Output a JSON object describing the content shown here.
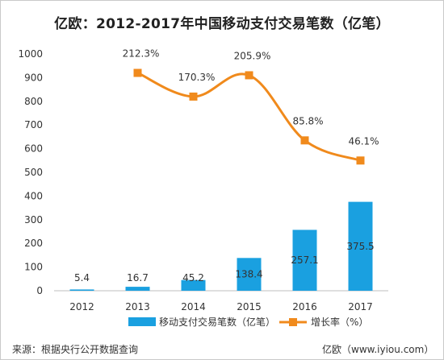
{
  "chart_data": {
    "type": "bar",
    "title": "亿欧：2012-2017年中国移动支付交易笔数（亿笔）",
    "categories": [
      "2012",
      "2013",
      "2014",
      "2015",
      "2016",
      "2017"
    ],
    "ylim": [
      0,
      1000
    ],
    "yticks": [
      0,
      100,
      200,
      300,
      400,
      500,
      600,
      700,
      800,
      900,
      1000
    ],
    "grid": false,
    "legend_position": "bottom",
    "series": [
      {
        "name": "移动支付交易笔数（亿笔）",
        "kind": "bar",
        "color": "#1aa0e0",
        "values": [
          5.4,
          16.7,
          45.2,
          138.4,
          257.1,
          375.5
        ],
        "labels": [
          "5.4",
          "16.7",
          "45.2",
          "138.4",
          "257.1",
          "375.5"
        ]
      },
      {
        "name": "增长率（%）",
        "kind": "line",
        "color": "#f08a1c",
        "values": [
          null,
          212.3,
          170.3,
          205.9,
          85.8,
          46.1
        ],
        "plotted_on_left_axis": [
          null,
          920,
          820,
          910,
          635,
          550
        ],
        "labels": [
          "",
          "212.3%",
          "170.3%",
          "205.9%",
          "85.8%",
          "46.1%"
        ]
      }
    ]
  },
  "footer": {
    "source": "来源：根据央行公开数据查询",
    "brand": "亿欧（www.iyiou.com）"
  }
}
